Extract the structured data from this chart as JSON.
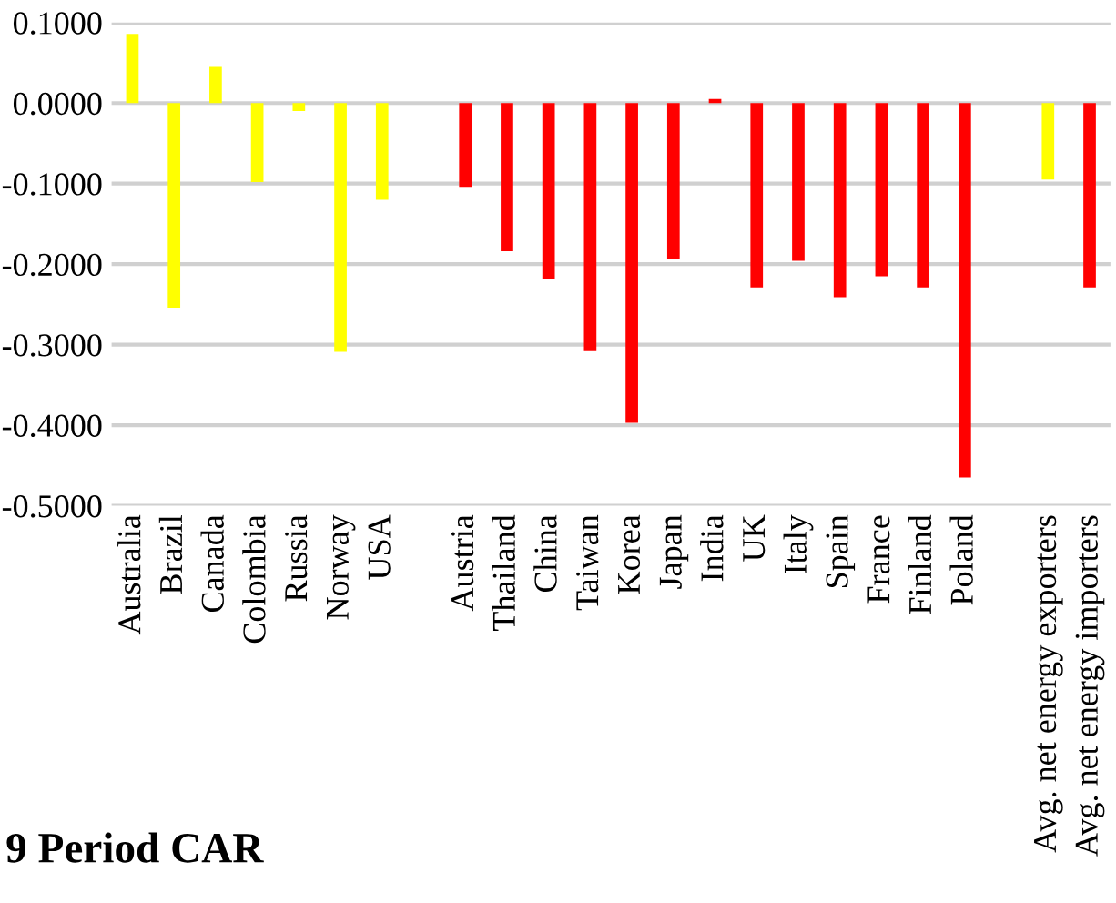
{
  "chart_data": {
    "type": "bar",
    "categories": [
      "Australia",
      "Brazil",
      "Canada",
      "Colombia",
      "Russia",
      "Norway",
      "USA",
      null,
      "Austria",
      "Thailand",
      "China",
      "Taiwan",
      "Korea",
      "Japan",
      "India",
      "UK",
      "Italy",
      "Spain",
      "France",
      "Finland",
      "Poland",
      null,
      "Avg. net energy exporters",
      "Avg. net energy importers"
    ],
    "values": [
      0.086,
      -0.254,
      0.045,
      -0.098,
      -0.01,
      -0.309,
      -0.12,
      null,
      -0.104,
      -0.184,
      -0.219,
      -0.308,
      -0.397,
      -0.194,
      0.005,
      -0.229,
      -0.196,
      -0.241,
      -0.215,
      -0.229,
      -0.465,
      null,
      -0.095,
      -0.229
    ],
    "colors": [
      "#ffff00",
      "#ffff00",
      "#ffff00",
      "#ffff00",
      "#ffff00",
      "#ffff00",
      "#ffff00",
      null,
      "#ff0000",
      "#ff0000",
      "#ff0000",
      "#ff0000",
      "#ff0000",
      "#ff0000",
      "#ff0000",
      "#ff0000",
      "#ff0000",
      "#ff0000",
      "#ff0000",
      "#ff0000",
      "#ff0000",
      null,
      "#ffff00",
      "#ff0000"
    ],
    "ylim": [
      -0.5,
      0.1
    ],
    "yticks": [
      {
        "value": 0.1,
        "label": "0.1000"
      },
      {
        "value": 0.0,
        "label": "0.0000"
      },
      {
        "value": -0.1,
        "label": "-0.1000"
      },
      {
        "value": -0.2,
        "label": "-0.2000"
      },
      {
        "value": -0.3,
        "label": "-0.3000"
      },
      {
        "value": -0.4,
        "label": "-0.4000"
      },
      {
        "value": -0.5,
        "label": "-0.5000"
      }
    ],
    "grid": "y",
    "annotations": [
      "9 Period CAR"
    ]
  }
}
